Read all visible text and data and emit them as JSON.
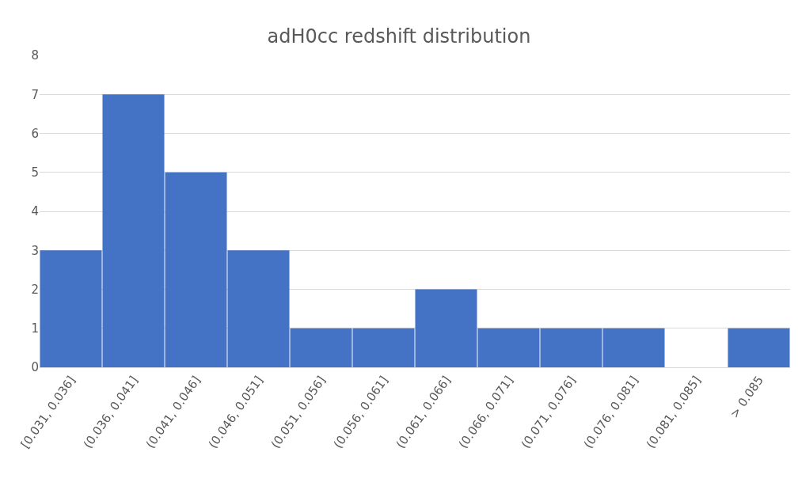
{
  "chart_data": {
    "type": "bar",
    "title": "adH0cc redshift distribution",
    "categories": [
      "[0.031, 0.036]",
      "(0.036, 0.041]",
      "(0.041, 0.046]",
      "(0.046, 0.051]",
      "(0.051, 0.056]",
      "(0.056, 0.061]",
      "(0.061, 0.066]",
      "(0.066, 0.071]",
      "(0.071, 0.076]",
      "(0.076, 0.081]",
      "(0.081, 0.085]",
      "> 0.085"
    ],
    "values": [
      3,
      7,
      5,
      3,
      1,
      1,
      2,
      1,
      1,
      1,
      0,
      1
    ],
    "color": "#4472c4",
    "ylim": [
      0,
      8
    ],
    "yticks": [
      0,
      1,
      2,
      3,
      4,
      5,
      6,
      7,
      8
    ],
    "grid": "y"
  }
}
